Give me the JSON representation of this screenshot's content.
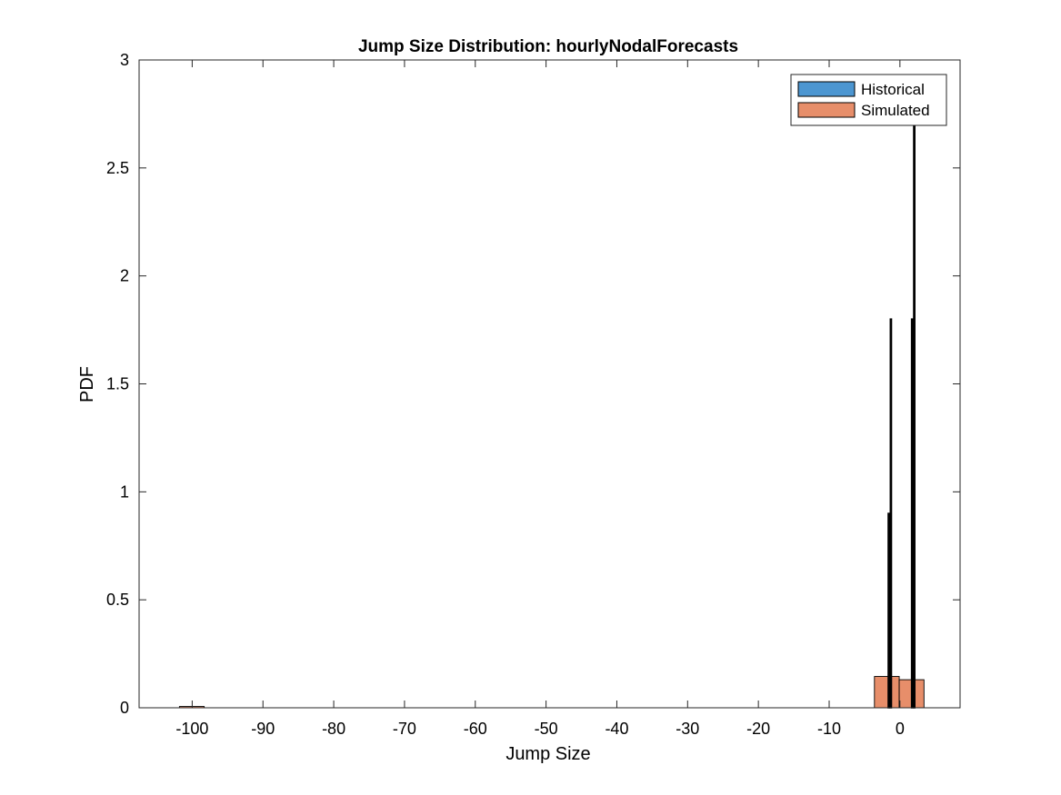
{
  "chart_data": {
    "type": "bar",
    "title": "Jump Size Distribution: hourlyNodalForecasts",
    "xlabel": "Jump Size",
    "ylabel": "PDF",
    "xlim": [
      -107.5,
      8.5
    ],
    "ylim": [
      0,
      3
    ],
    "xticks": [
      -100,
      -90,
      -80,
      -70,
      -60,
      -50,
      -40,
      -30,
      -20,
      -10,
      0
    ],
    "yticks": [
      0,
      0.5,
      1,
      1.5,
      2,
      2.5,
      3
    ],
    "xtick_labels": [
      "-100",
      "-90",
      "-80",
      "-70",
      "-60",
      "-50",
      "-40",
      "-30",
      "-20",
      "-10",
      "0"
    ],
    "ytick_labels": [
      "0",
      "0.5",
      "1",
      "1.5",
      "2",
      "2.5",
      "3"
    ],
    "grid": false,
    "legend_position": "top-right",
    "series": [
      {
        "name": "Historical",
        "color": "#4C96D1",
        "bins": [
          {
            "x0": -1.65,
            "x1": -1.5,
            "value": 0.9
          },
          {
            "x0": -1.35,
            "x1": -1.2,
            "value": 1.8
          },
          {
            "x0": 1.65,
            "x1": 1.8,
            "value": 1.8
          },
          {
            "x0": 1.95,
            "x1": 2.1,
            "value": 2.75
          }
        ]
      },
      {
        "name": "Simulated",
        "color": "#E78E6A",
        "bins": [
          {
            "x0": -101.8,
            "x1": -98.3,
            "value": 0.006
          },
          {
            "x0": -3.6,
            "x1": -0.1,
            "value": 0.145
          },
          {
            "x0": -0.1,
            "x1": 3.4,
            "value": 0.13
          }
        ]
      }
    ]
  }
}
